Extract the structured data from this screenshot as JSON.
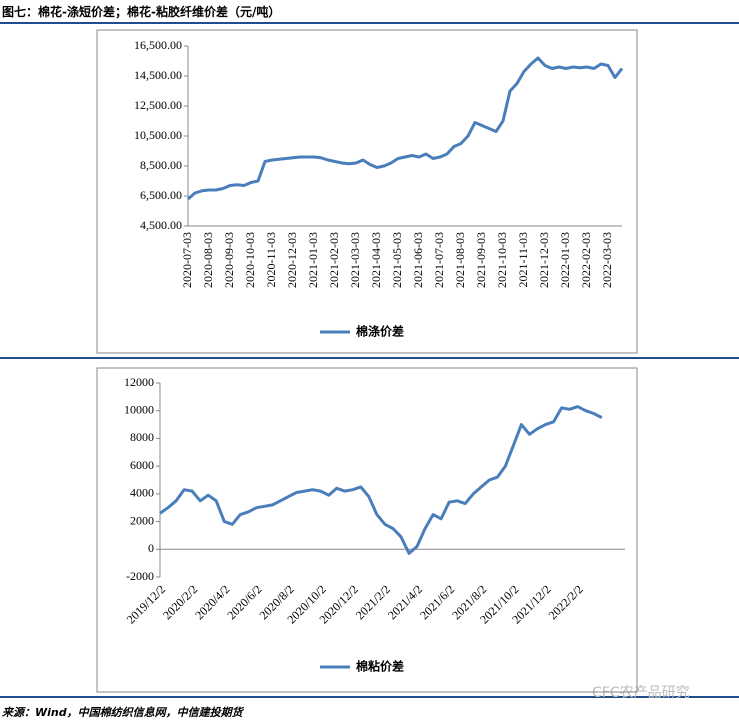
{
  "header": {
    "title": "图七：棉花-涤短价差；棉花-粘胶纤维价差（元/吨）"
  },
  "chart_data": [
    {
      "type": "line",
      "categories": [
        "2020-07-03",
        null,
        null,
        "2020-08-03",
        null,
        null,
        "2020-09-03",
        null,
        null,
        "2020-10-03",
        null,
        null,
        "2020-11-03",
        null,
        null,
        "2020-12-03",
        null,
        null,
        "2021-01-03",
        null,
        null,
        "2021-02-03",
        null,
        null,
        "2021-03-03",
        null,
        null,
        "2021-04-03",
        null,
        null,
        "2021-05-03",
        null,
        null,
        "2021-06-03",
        null,
        null,
        "2021-07-03",
        null,
        null,
        "2021-08-03",
        null,
        null,
        "2021-09-03",
        null,
        null,
        "2021-10-03",
        null,
        null,
        "2021-11-03",
        null,
        null,
        "2021-12-03",
        null,
        null,
        "2022-01-03",
        null,
        null,
        "2022-02-03",
        null,
        null,
        "2022-03-03",
        null,
        null
      ],
      "series": [
        {
          "name": "棉涤价差",
          "color": "#4a7ebb",
          "values": [
            6300,
            6700,
            6850,
            6900,
            6900,
            7000,
            7200,
            7250,
            7200,
            7400,
            7500,
            8800,
            8900,
            8950,
            9000,
            9050,
            9100,
            9100,
            9100,
            9050,
            8900,
            8800,
            8700,
            8650,
            8700,
            8900,
            8600,
            8400,
            8500,
            8700,
            9000,
            9100,
            9200,
            9100,
            9300,
            9000,
            9100,
            9300,
            9800,
            10000,
            10500,
            11400,
            11200,
            11000,
            10800,
            11500,
            13500,
            14000,
            14800,
            15300,
            15700,
            15200,
            15000,
            15100,
            15000,
            15100,
            15050,
            15100,
            15000,
            15300,
            15200,
            14400,
            15000
          ]
        }
      ],
      "ylim": [
        4500,
        16500
      ],
      "yticks": [
        {
          "value": 4500,
          "label": "4,500.00"
        },
        {
          "value": 6500,
          "label": "6,500.00"
        },
        {
          "value": 8500,
          "label": "8,500.00"
        },
        {
          "value": 10500,
          "label": "10,500.00"
        },
        {
          "value": 12500,
          "label": "12,500.00"
        },
        {
          "value": 14500,
          "label": "14,500.00"
        },
        {
          "value": 16500,
          "label": "16,500.00"
        }
      ],
      "grid": false,
      "legend": "bottom"
    },
    {
      "type": "line",
      "categories": [
        "2019/12/2",
        null,
        null,
        null,
        "2020/2/2",
        null,
        null,
        null,
        "2020/4/2",
        null,
        null,
        null,
        "2020/6/2",
        null,
        null,
        null,
        "2020/8/2",
        null,
        null,
        null,
        "2020/10/2",
        null,
        null,
        null,
        "2020/12/2",
        null,
        null,
        null,
        "2021/2/2",
        null,
        null,
        null,
        "2021/4/2",
        null,
        null,
        null,
        "2021/6/2",
        null,
        null,
        null,
        "2021/8/2",
        null,
        null,
        null,
        "2021/10/2",
        null,
        null,
        null,
        "2021/12/2",
        null,
        null,
        null,
        "2022/2/2",
        null,
        null,
        null
      ],
      "series": [
        {
          "name": "棉粘价差",
          "color": "#4a7ebb",
          "values": [
            2600,
            3000,
            3500,
            4300,
            4200,
            3500,
            3900,
            3500,
            2000,
            1800,
            2500,
            2700,
            3000,
            3100,
            3200,
            3500,
            3800,
            4100,
            4200,
            4300,
            4200,
            3900,
            4400,
            4200,
            4300,
            4500,
            3800,
            2500,
            1800,
            1500,
            900,
            -300,
            200,
            1500,
            2500,
            2200,
            3400,
            3500,
            3300,
            4000,
            4500,
            5000,
            5200,
            6000,
            7500,
            9000,
            8300,
            8700,
            9000,
            9200,
            10200,
            10100,
            10300,
            10000,
            9800,
            9500
          ]
        }
      ],
      "ylim": [
        -2000,
        12000
      ],
      "yticks": [
        -2000,
        0,
        2000,
        4000,
        6000,
        8000,
        10000,
        12000
      ],
      "grid": false,
      "legend": "bottom"
    }
  ],
  "footer": {
    "source": "来源：Wind，中国棉纺织信息网，中信建投期货",
    "watermark": "CFC农产品研究"
  }
}
